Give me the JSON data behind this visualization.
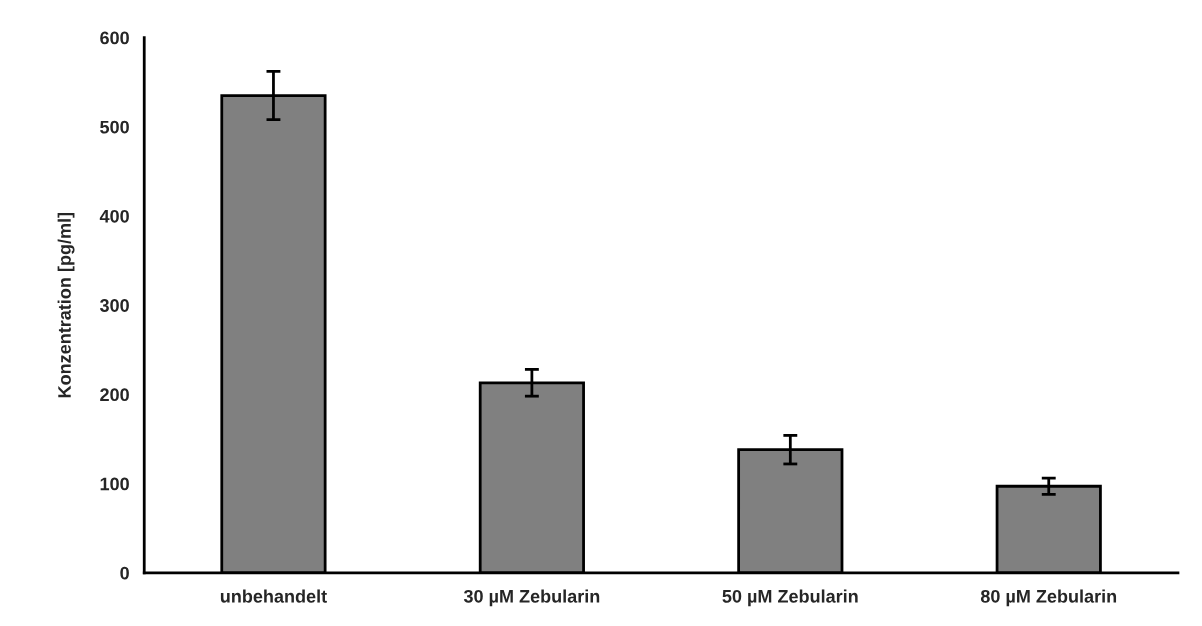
{
  "chart_data": {
    "type": "bar",
    "ylabel": "Konzentration [pg/ml]",
    "categories": [
      "unbehandelt",
      "30 µM Zebularin",
      "50 µM Zebularin",
      "80 µM Zebularin"
    ],
    "values": [
      535,
      213,
      138,
      97
    ],
    "errors": [
      27,
      15,
      16,
      9
    ],
    "color": "#808080",
    "ylim": [
      0,
      600
    ],
    "yticks": [
      0,
      100,
      200,
      300,
      400,
      500,
      600
    ],
    "grid": false
  }
}
